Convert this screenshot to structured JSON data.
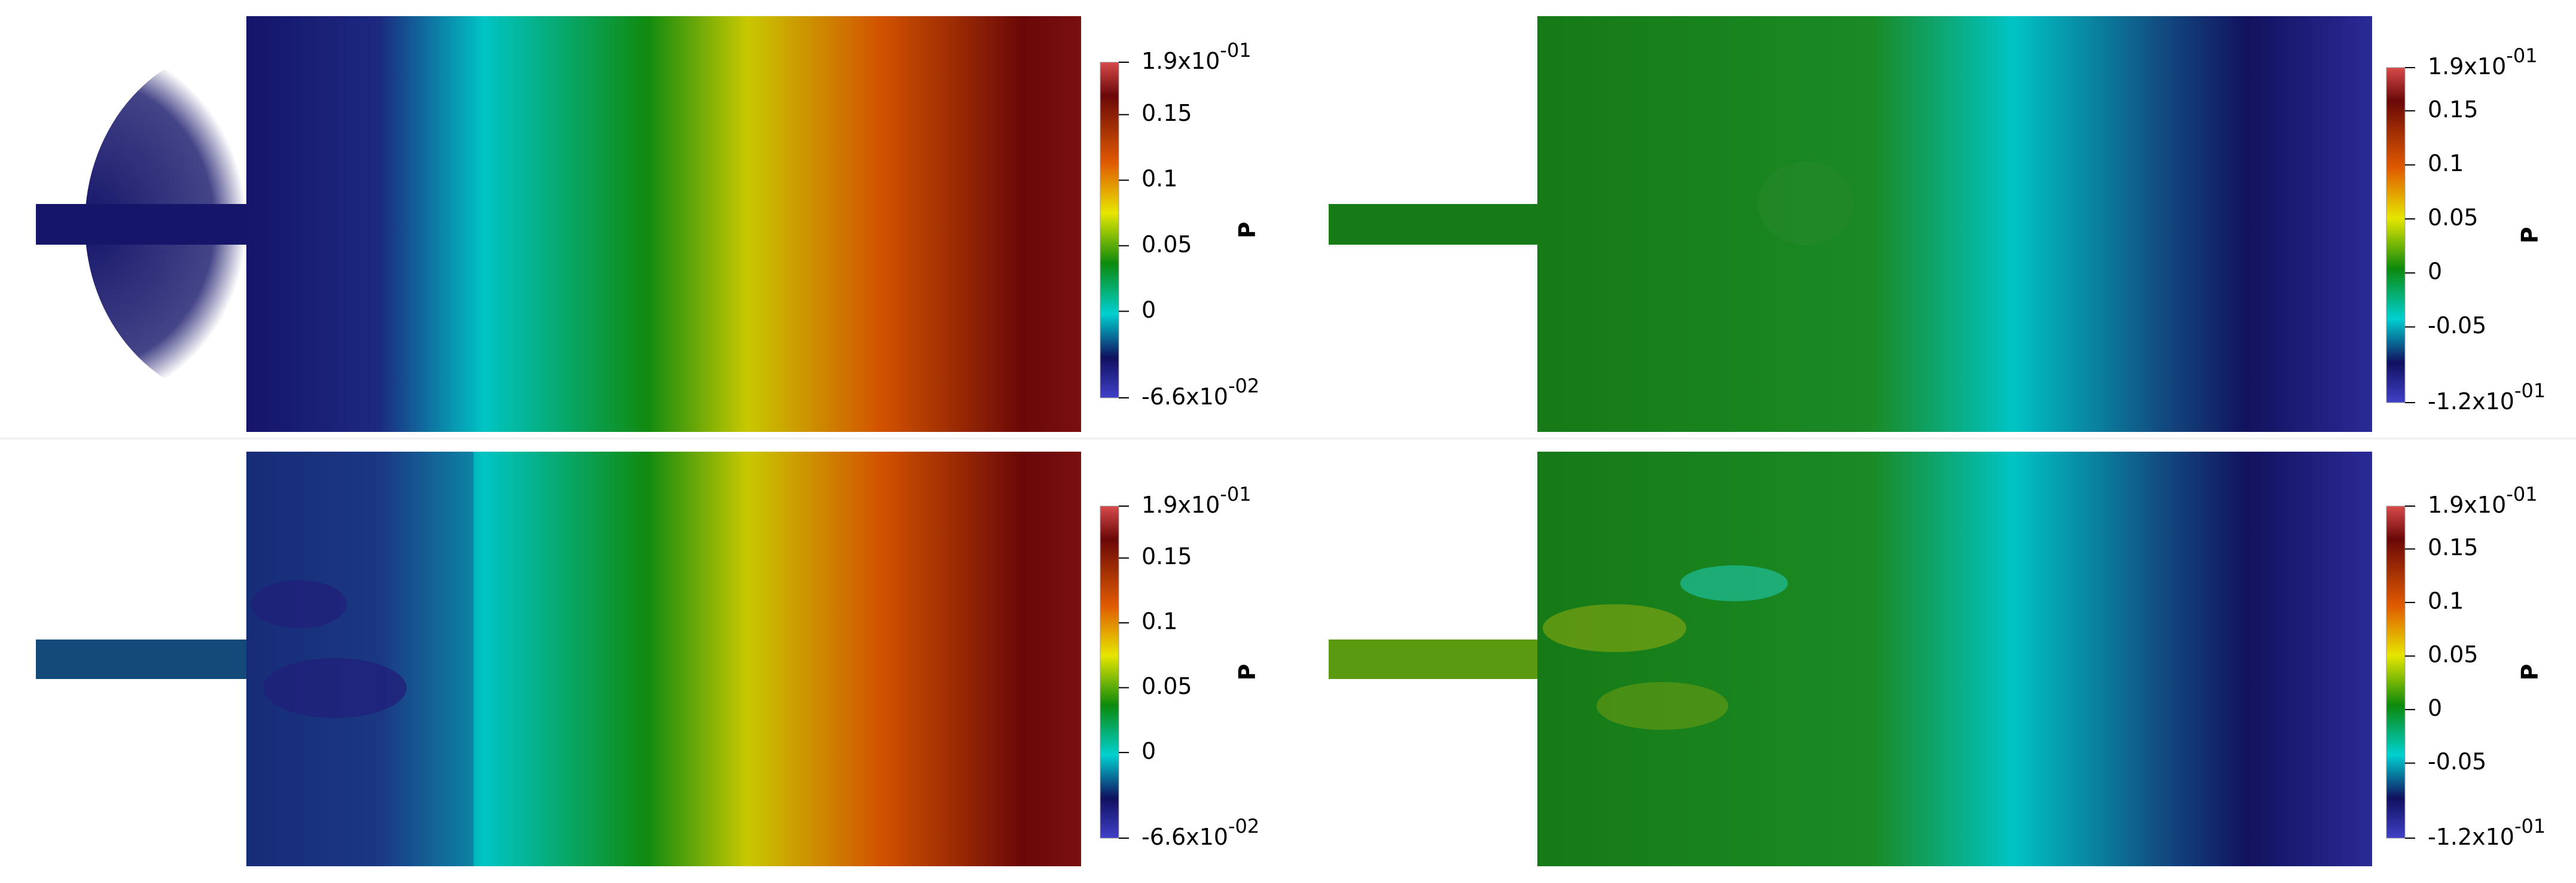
{
  "panels": [
    {
      "colorbar": {
        "title": "P",
        "ylim": [
          -0.066,
          0.19
        ],
        "ticks": [
          {
            "value": 0.19,
            "label": "1.9x10",
            "exponent": "-01"
          },
          0.15,
          0.1,
          0.05,
          0,
          {
            "value": -0.066,
            "label": "-6.6x10",
            "exponent": "-02"
          }
        ]
      }
    },
    {
      "colorbar": {
        "title": "P",
        "ylim": [
          -0.12,
          0.19
        ],
        "ticks": [
          {
            "value": 0.19,
            "label": "1.9x10",
            "exponent": "-01"
          },
          0.15,
          0.1,
          0.05,
          0,
          -0.05,
          {
            "value": -0.12,
            "label": "-1.2x10",
            "exponent": "-01"
          }
        ]
      }
    },
    {
      "colorbar": {
        "title": "P",
        "ylim": [
          -0.066,
          0.19
        ],
        "ticks": [
          {
            "value": 0.19,
            "label": "1.9x10",
            "exponent": "-01"
          },
          0.15,
          0.1,
          0.05,
          0,
          {
            "value": -0.066,
            "label": "-6.6x10",
            "exponent": "-02"
          }
        ]
      }
    },
    {
      "colorbar": {
        "title": "P",
        "ylim": [
          -0.12,
          0.19
        ],
        "ticks": [
          {
            "value": 0.19,
            "label": "1.9x10",
            "exponent": "-01"
          },
          0.15,
          0.1,
          0.05,
          0,
          -0.05,
          {
            "value": -0.12,
            "label": "-1.2x10",
            "exponent": "-01"
          }
        ]
      }
    }
  ]
}
